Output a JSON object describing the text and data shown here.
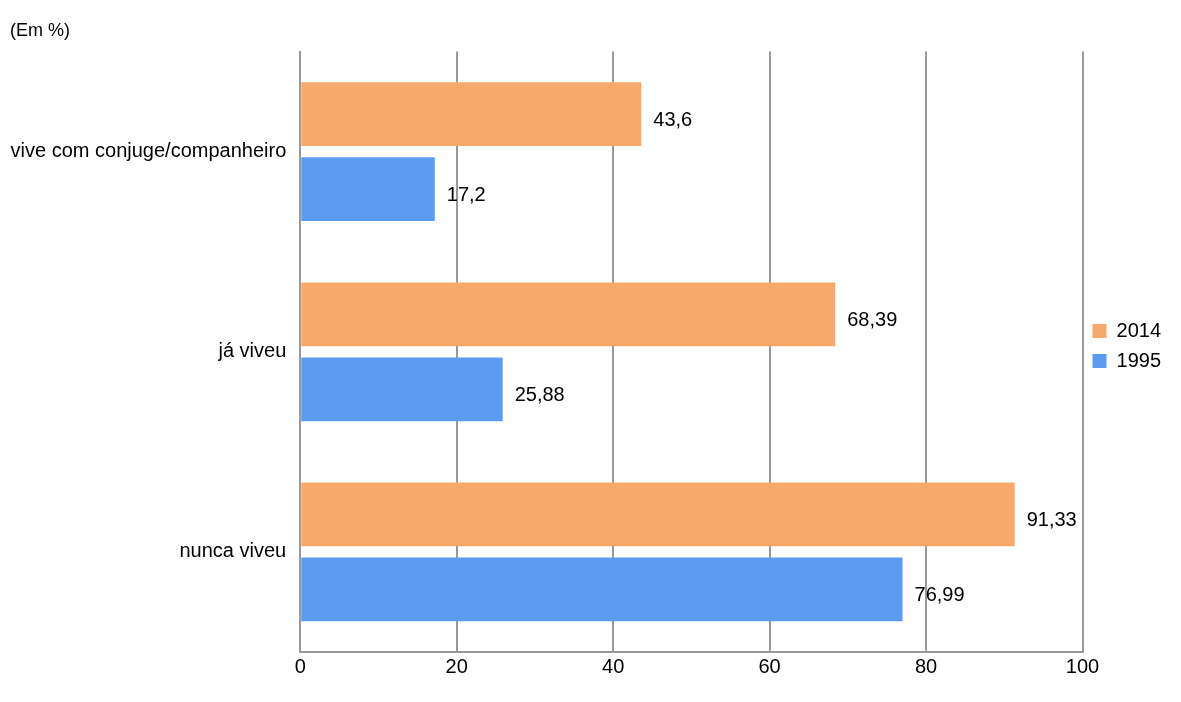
{
  "chart_data": {
    "type": "bar",
    "orientation": "horizontal",
    "title": "(Em %)",
    "categories": [
      "vive com conjuge/companheiro",
      "já viveu",
      "nunca viveu"
    ],
    "series": [
      {
        "name": "2014",
        "color": "#f7a96b",
        "values": [
          43.6,
          68.39,
          91.33
        ],
        "value_labels": [
          "43,6",
          "68,39",
          "91,33"
        ]
      },
      {
        "name": "1995",
        "color": "#5b9bf0",
        "values": [
          17.2,
          25.88,
          76.99
        ],
        "value_labels": [
          "17,2",
          "25,88",
          "76,99"
        ]
      }
    ],
    "xlim": [
      0,
      100
    ],
    "xticks": [
      0,
      20,
      40,
      60,
      80,
      100
    ],
    "grid": "x",
    "legend": "right"
  }
}
